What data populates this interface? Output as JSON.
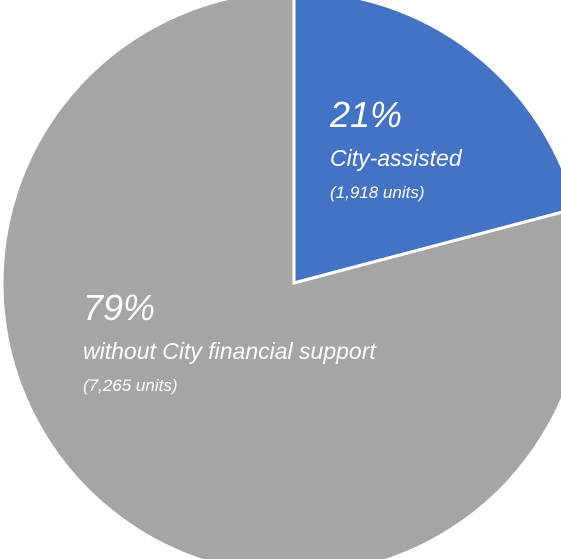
{
  "chart_data": {
    "type": "pie",
    "slices": [
      {
        "label": "City-assisted",
        "percent_label": "21%",
        "units_label": "(1,918 units)",
        "units": 1918,
        "percent": 21,
        "color": "#4472c4"
      },
      {
        "label": "without City financial support",
        "percent_label": "79%",
        "units_label": "(7,265 units)",
        "units": 7265,
        "percent": 79,
        "color": "#a5a5a5"
      }
    ],
    "start_angle_deg": 0,
    "direction": "clockwise",
    "legend": "none"
  }
}
